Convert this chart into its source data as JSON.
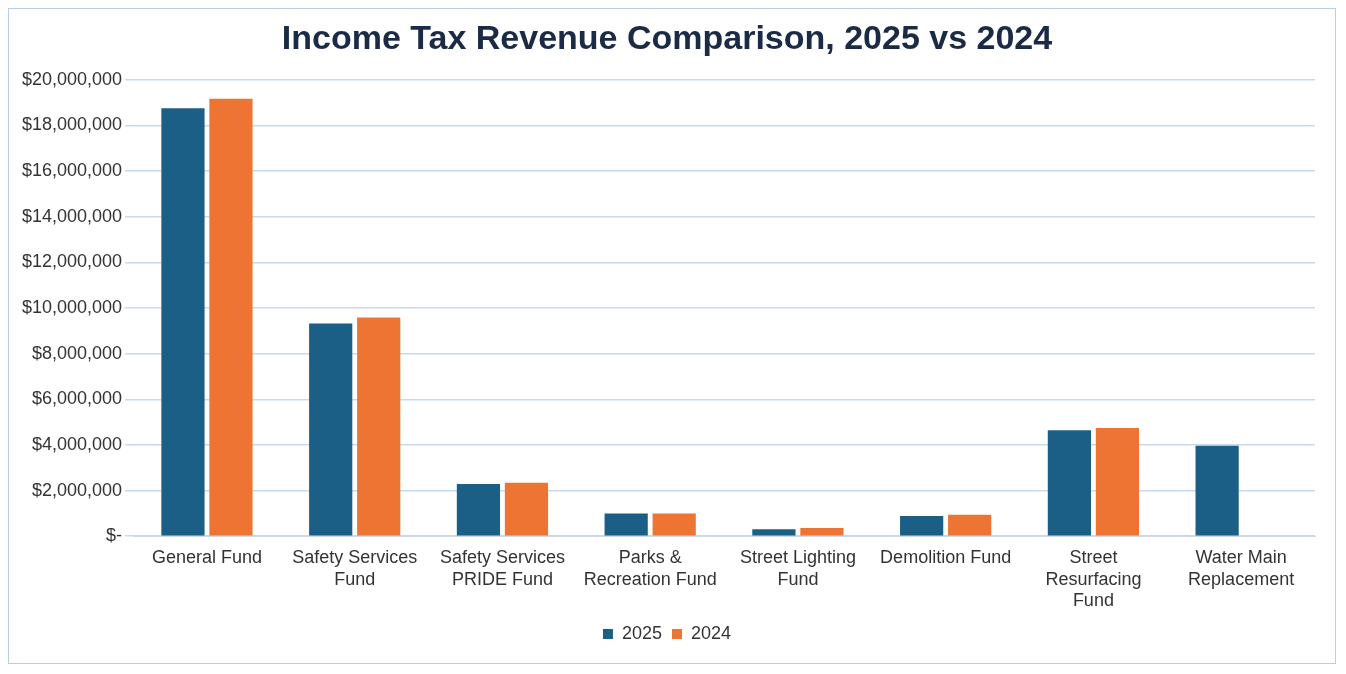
{
  "chart_data": {
    "type": "bar",
    "title": "Income Tax Revenue Comparison, 2025 vs 2024",
    "categories": [
      "General Fund",
      "Safety Services Fund",
      "Safety Services PRIDE Fund",
      "Parks & Recreation Fund",
      "Street Lighting Fund",
      "Demolition Fund",
      "Street Resurfacing Fund",
      "Water Main Replacement"
    ],
    "series": [
      {
        "name": "2025",
        "color": "#1b5f87",
        "values": [
          18750000,
          9320000,
          2290000,
          990000,
          310000,
          890000,
          4640000,
          3960000
        ]
      },
      {
        "name": "2024",
        "color": "#ee7433",
        "values": [
          19170000,
          9580000,
          2340000,
          990000,
          360000,
          940000,
          4740000,
          null
        ]
      }
    ],
    "ylim": [
      0,
      20000000
    ],
    "yticks": [
      {
        "value": 0,
        "label": "$-"
      },
      {
        "value": 2000000,
        "label": "$2,000,000"
      },
      {
        "value": 4000000,
        "label": "$4,000,000"
      },
      {
        "value": 6000000,
        "label": "$6,000,000"
      },
      {
        "value": 8000000,
        "label": "$8,000,000"
      },
      {
        "value": 10000000,
        "label": "$10,000,000"
      },
      {
        "value": 12000000,
        "label": "$12,000,000"
      },
      {
        "value": 14000000,
        "label": "$14,000,000"
      },
      {
        "value": 16000000,
        "label": "$16,000,000"
      },
      {
        "value": 18000000,
        "label": "$18,000,000"
      },
      {
        "value": 20000000,
        "label": "$20,000,000"
      }
    ],
    "grid": "y",
    "legend": "bottom"
  }
}
